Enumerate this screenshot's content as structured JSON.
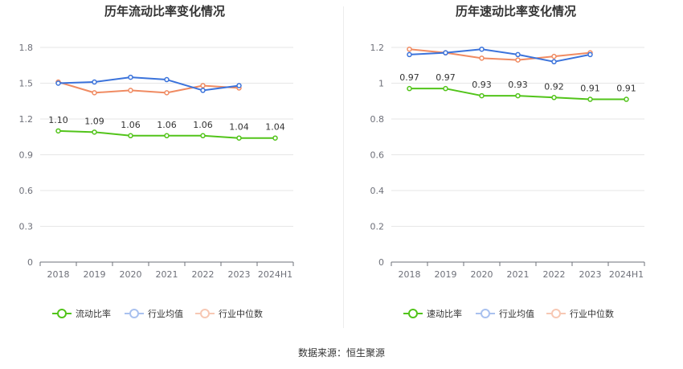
{
  "colors": {
    "main_series": "#52c41a",
    "industry_avg": "#3b73db",
    "industry_median": "#f08b62",
    "legend_avg_faded": "#a9c1ef",
    "legend_median_faded": "#f7c8b4",
    "grid": "#e6e6e6",
    "axis": "#6e7079"
  },
  "chart_data": [
    {
      "type": "line",
      "title": "历年流动比率变化情况",
      "categories": [
        "2018",
        "2019",
        "2020",
        "2021",
        "2022",
        "2023",
        "2024H1"
      ],
      "yticks": [
        "0",
        "0.3",
        "0.6",
        "0.9",
        "1.2",
        "1.5",
        "1.8"
      ],
      "ylim": [
        0,
        1.8
      ],
      "grid": true,
      "legend_position": "bottom-center",
      "series": [
        {
          "name": "流动比率",
          "values": [
            1.1,
            1.09,
            1.06,
            1.06,
            1.06,
            1.04,
            1.04
          ],
          "labels": [
            "1.10",
            "1.09",
            "1.06",
            "1.06",
            "1.06",
            "1.04",
            "1.04"
          ]
        },
        {
          "name": "行业均值",
          "values": [
            1.5,
            1.51,
            1.55,
            1.53,
            1.44,
            1.48,
            null
          ]
        },
        {
          "name": "行业中位数",
          "values": [
            1.51,
            1.42,
            1.44,
            1.42,
            1.48,
            1.46,
            null
          ]
        }
      ]
    },
    {
      "type": "line",
      "title": "历年速动比率变化情况",
      "categories": [
        "2018",
        "2019",
        "2020",
        "2021",
        "2022",
        "2023",
        "2024H1"
      ],
      "yticks": [
        "0",
        "0.2",
        "0.4",
        "0.6",
        "0.8",
        "1",
        "1.2"
      ],
      "ylim": [
        0,
        1.2
      ],
      "grid": true,
      "legend_position": "bottom-center",
      "series": [
        {
          "name": "速动比率",
          "values": [
            0.97,
            0.97,
            0.93,
            0.93,
            0.92,
            0.91,
            0.91
          ],
          "labels": [
            "0.97",
            "0.97",
            "0.93",
            "0.93",
            "0.92",
            "0.91",
            "0.91"
          ]
        },
        {
          "name": "行业均值",
          "values": [
            1.16,
            1.17,
            1.19,
            1.16,
            1.12,
            1.16,
            null
          ]
        },
        {
          "name": "行业中位数",
          "values": [
            1.19,
            1.17,
            1.14,
            1.13,
            1.15,
            1.17,
            null
          ]
        }
      ]
    }
  ],
  "footer": {
    "source": "数据来源：恒生聚源"
  }
}
